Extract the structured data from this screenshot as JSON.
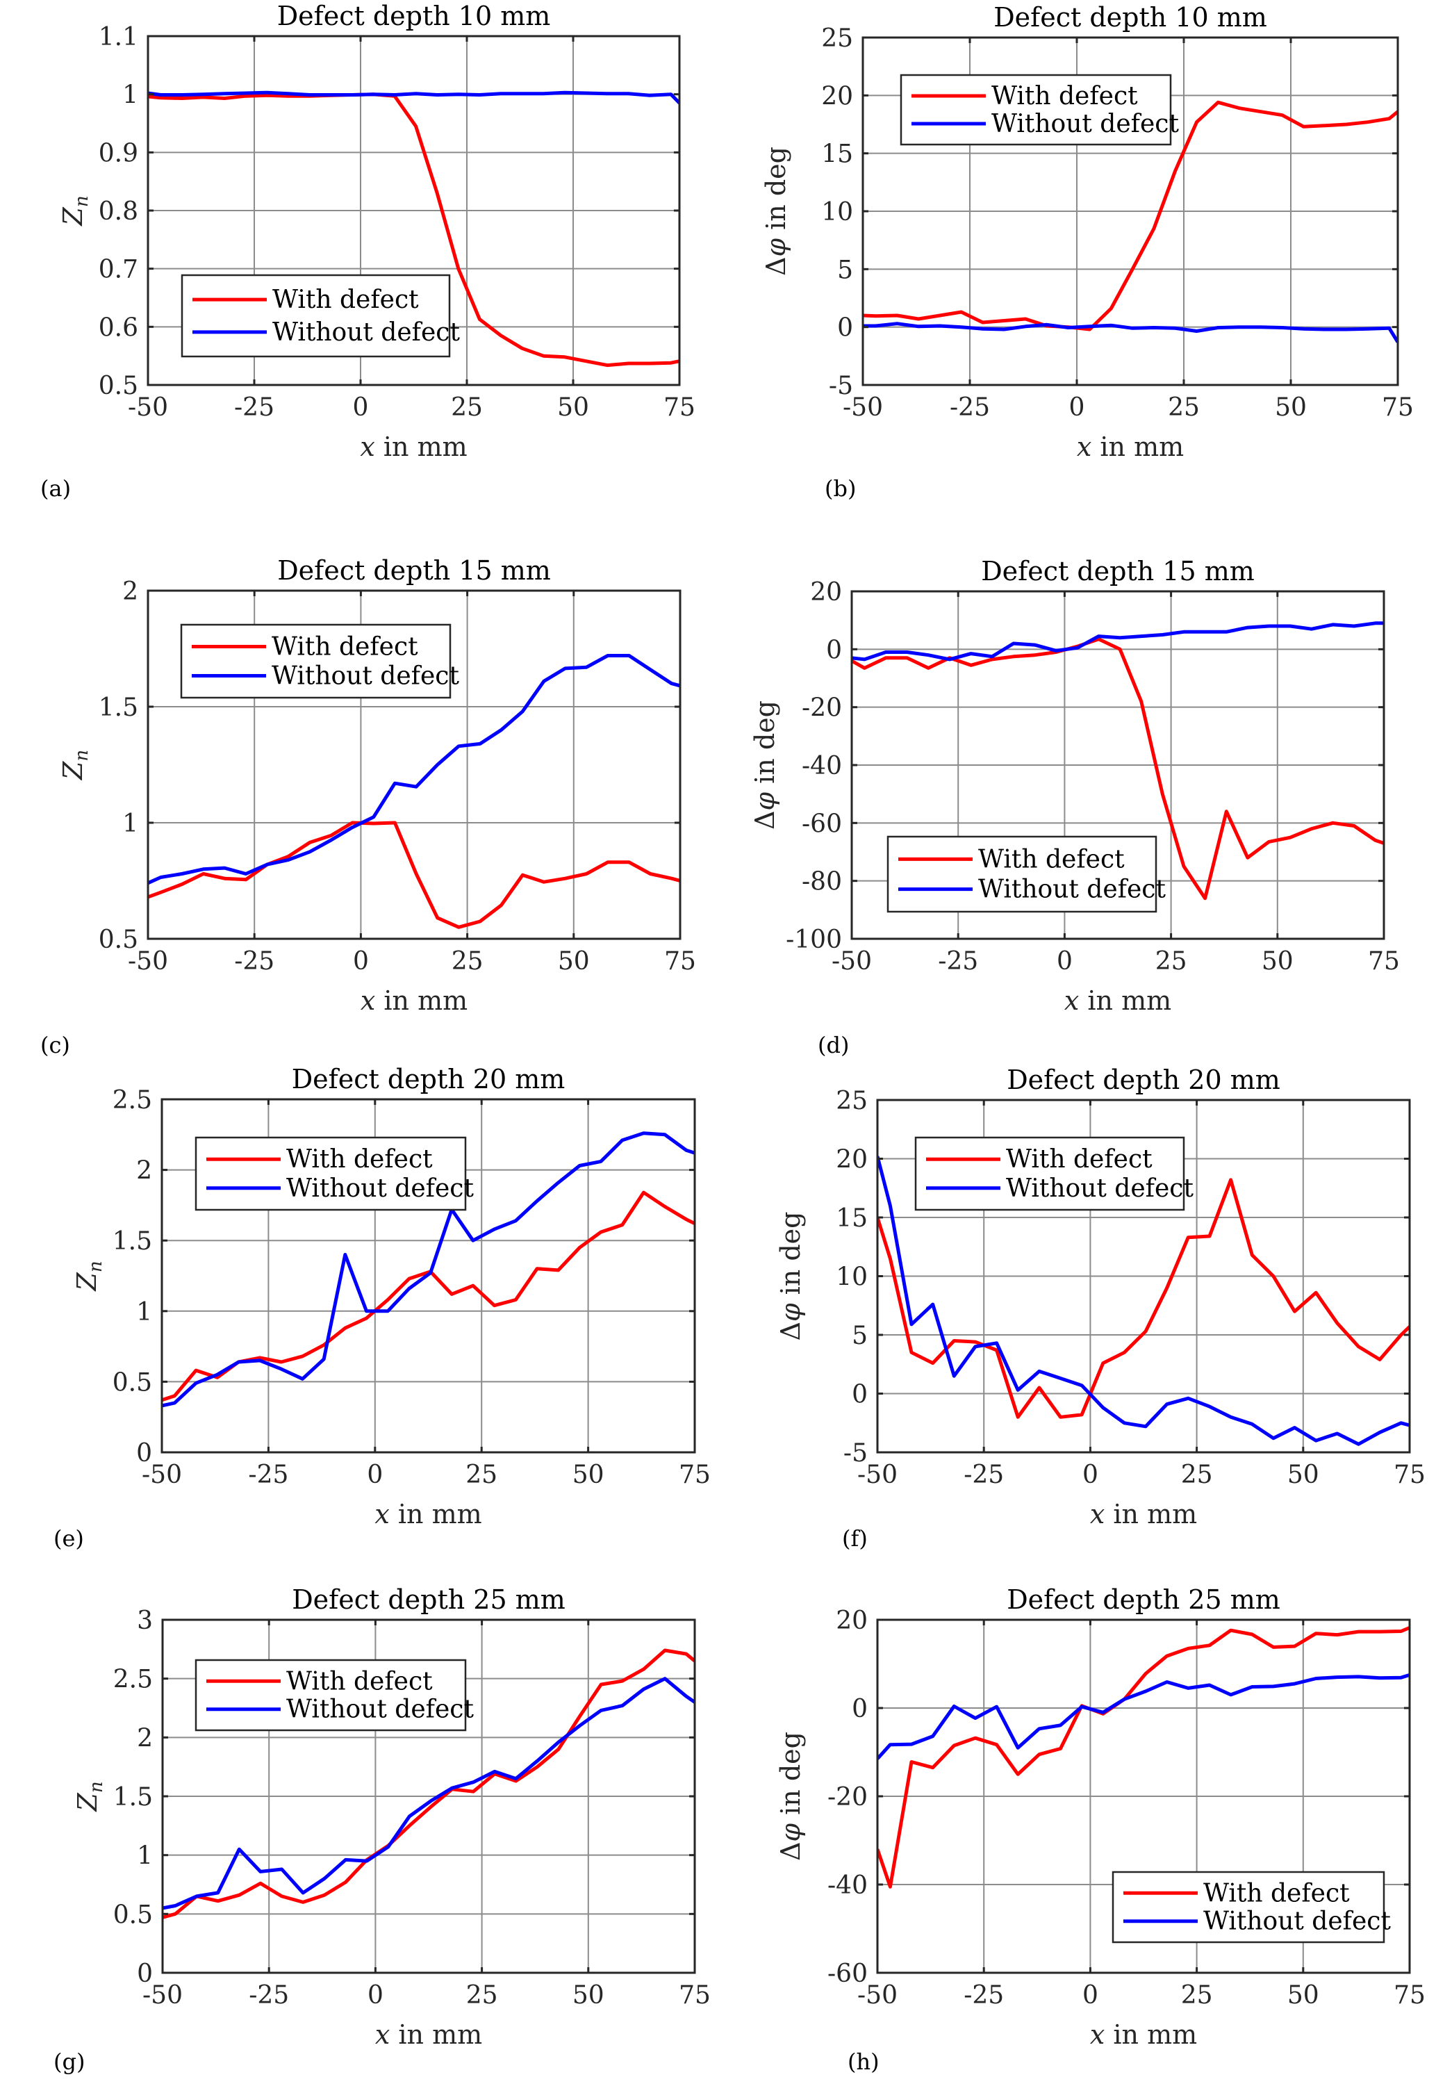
{
  "figure": {
    "colors": {
      "with_defect": "#ff0000",
      "without_defect": "#0000ff"
    },
    "legend_labels": [
      "With defect",
      "Without defect"
    ]
  },
  "chart_data": [
    {
      "panel": "(a)",
      "type": "line",
      "title": "Defect depth 10 mm",
      "xlabel": "x in mm",
      "ylabel": "Z_n",
      "xlim": [
        -50,
        75
      ],
      "ylim": [
        0.5,
        1.1
      ],
      "xticks": [
        -50,
        -25,
        0,
        25,
        50,
        75
      ],
      "yticks": [
        0.5,
        0.6,
        0.7,
        0.8,
        0.9,
        1,
        1.1
      ],
      "ytick_labels": [
        "0.5",
        "0.6",
        "0.7",
        "0.8",
        "0.9",
        "1",
        "1.1"
      ],
      "grid": true,
      "legend_position": "lower-left",
      "x": [
        -50,
        -47,
        -42,
        -37,
        -32,
        -27,
        -22,
        -17,
        -12,
        -7,
        -2,
        3,
        8,
        13,
        18,
        23,
        28,
        33,
        38,
        43,
        48,
        53,
        58,
        63,
        68,
        73,
        75
      ],
      "series": [
        {
          "name": "With defect",
          "values": [
            0.996,
            0.994,
            0.993,
            0.995,
            0.993,
            0.997,
            0.998,
            0.997,
            0.997,
            0.998,
            0.999,
            1.0,
            0.997,
            0.945,
            0.83,
            0.7,
            0.613,
            0.585,
            0.563,
            0.55,
            0.548,
            0.541,
            0.534,
            0.537,
            0.537,
            0.538,
            0.541
          ]
        },
        {
          "name": "Without defect",
          "values": [
            1.002,
            0.999,
            0.999,
            1.0,
            1.001,
            1.002,
            1.003,
            1.001,
            0.999,
            0.999,
            0.999,
            1.0,
            0.999,
            1.001,
            0.999,
            1.0,
            0.999,
            1.001,
            1.001,
            1.001,
            1.003,
            1.002,
            1.001,
            1.001,
            0.998,
            1.0,
            0.985
          ]
        }
      ]
    },
    {
      "panel": "(b)",
      "type": "line",
      "title": "Defect depth 10 mm",
      "xlabel": "x in mm",
      "ylabel": "Δφ in deg",
      "xlim": [
        -50,
        75
      ],
      "ylim": [
        -5,
        25
      ],
      "xticks": [
        -50,
        -25,
        0,
        25,
        50,
        75
      ],
      "yticks": [
        -5,
        0,
        5,
        10,
        15,
        20,
        25
      ],
      "ytick_labels": [
        "-5",
        "0",
        "5",
        "10",
        "15",
        "20",
        "25"
      ],
      "grid": true,
      "legend_position": "upper-left",
      "x": [
        -50,
        -47,
        -42,
        -37,
        -32,
        -27,
        -22,
        -17,
        -12,
        -7,
        -2,
        3,
        8,
        13,
        18,
        23,
        28,
        33,
        38,
        43,
        48,
        53,
        58,
        63,
        68,
        73,
        75
      ],
      "series": [
        {
          "name": "With defect",
          "values": [
            1.0,
            0.95,
            1.0,
            0.7,
            1.0,
            1.3,
            0.4,
            0.55,
            0.7,
            0.1,
            0.0,
            -0.2,
            1.6,
            5.0,
            8.5,
            13.5,
            17.7,
            19.4,
            18.9,
            18.6,
            18.3,
            17.3,
            17.4,
            17.5,
            17.7,
            18.0,
            18.6
          ]
        },
        {
          "name": "Without defect",
          "values": [
            0.1,
            0.1,
            0.3,
            0.05,
            0.1,
            0.0,
            -0.15,
            -0.2,
            0.05,
            0.2,
            -0.05,
            0.05,
            0.15,
            -0.1,
            -0.05,
            -0.1,
            -0.35,
            -0.05,
            0.0,
            0.0,
            -0.05,
            -0.15,
            -0.2,
            -0.2,
            -0.15,
            -0.1,
            -1.3
          ]
        }
      ]
    },
    {
      "panel": "(c)",
      "type": "line",
      "title": "Defect depth 15 mm",
      "xlabel": "x in mm",
      "ylabel": "Z_n",
      "xlim": [
        -50,
        75
      ],
      "ylim": [
        0.5,
        2
      ],
      "xticks": [
        -50,
        -25,
        0,
        25,
        50,
        75
      ],
      "yticks": [
        0.5,
        1,
        1.5,
        2
      ],
      "ytick_labels": [
        "0.5",
        "1",
        "1.5",
        "2"
      ],
      "grid": true,
      "legend_position": "upper-left",
      "x": [
        -50,
        -47,
        -42,
        -37,
        -32,
        -27,
        -22,
        -17,
        -12,
        -7,
        -2,
        3,
        8,
        13,
        18,
        23,
        28,
        33,
        38,
        43,
        48,
        53,
        58,
        63,
        68,
        73,
        75
      ],
      "series": [
        {
          "name": "With defect",
          "values": [
            0.68,
            0.7,
            0.735,
            0.78,
            0.76,
            0.755,
            0.82,
            0.855,
            0.915,
            0.945,
            1.0,
            0.997,
            1.0,
            0.78,
            0.59,
            0.55,
            0.575,
            0.645,
            0.775,
            0.745,
            0.76,
            0.78,
            0.83,
            0.83,
            0.78,
            0.76,
            0.75
          ]
        },
        {
          "name": "Without defect",
          "values": [
            0.74,
            0.765,
            0.78,
            0.8,
            0.805,
            0.78,
            0.82,
            0.84,
            0.875,
            0.925,
            0.98,
            1.025,
            1.17,
            1.155,
            1.25,
            1.33,
            1.34,
            1.4,
            1.48,
            1.61,
            1.665,
            1.67,
            1.72,
            1.72,
            1.66,
            1.6,
            1.59
          ]
        }
      ]
    },
    {
      "panel": "(d)",
      "type": "line",
      "title": "Defect depth 15 mm",
      "xlabel": "x in mm",
      "ylabel": "Δφ in deg",
      "xlim": [
        -50,
        75
      ],
      "ylim": [
        -100,
        20
      ],
      "xticks": [
        -50,
        -25,
        0,
        25,
        50,
        75
      ],
      "yticks": [
        -100,
        -80,
        -60,
        -40,
        -20,
        0,
        20
      ],
      "ytick_labels": [
        "-100",
        "-80",
        "-60",
        "-40",
        "-20",
        "0",
        "20"
      ],
      "grid": true,
      "legend_position": "lower-left",
      "x": [
        -50,
        -47,
        -42,
        -37,
        -32,
        -27,
        -22,
        -17,
        -12,
        -7,
        -2,
        3,
        8,
        13,
        18,
        23,
        28,
        33,
        38,
        43,
        48,
        53,
        58,
        63,
        68,
        73,
        75
      ],
      "series": [
        {
          "name": "With defect",
          "values": [
            -4,
            -6.5,
            -3,
            -3,
            -6.5,
            -3,
            -5.5,
            -3.5,
            -2.5,
            -2,
            -1,
            1,
            3.5,
            0,
            -18,
            -50,
            -75,
            -86,
            -56,
            -72,
            -66.5,
            -65,
            -62,
            -60,
            -61,
            -66,
            -67
          ]
        },
        {
          "name": "Without defect",
          "values": [
            -3,
            -3.5,
            -1,
            -1,
            -2,
            -3.5,
            -1.5,
            -2.5,
            2,
            1.5,
            -0.5,
            0.5,
            4.5,
            4,
            4.5,
            5,
            6,
            6,
            6,
            7.5,
            8,
            8,
            7,
            8.5,
            8,
            9,
            9
          ]
        }
      ]
    },
    {
      "panel": "(e)",
      "type": "line",
      "title": "Defect depth 20 mm",
      "xlabel": "x in mm",
      "ylabel": "Z_n",
      "xlim": [
        -50,
        75
      ],
      "ylim": [
        0,
        2.5
      ],
      "xticks": [
        -50,
        -25,
        0,
        25,
        50,
        75
      ],
      "yticks": [
        0,
        0.5,
        1,
        1.5,
        2,
        2.5
      ],
      "ytick_labels": [
        "0",
        "0.5",
        "1",
        "1.5",
        "2",
        "2.5"
      ],
      "grid": true,
      "legend_position": "upper-left",
      "x": [
        -50,
        -47,
        -42,
        -37,
        -32,
        -27,
        -22,
        -17,
        -12,
        -7,
        -2,
        3,
        8,
        13,
        18,
        23,
        28,
        33,
        38,
        43,
        48,
        53,
        58,
        63,
        68,
        73,
        75
      ],
      "series": [
        {
          "name": "With defect",
          "values": [
            0.37,
            0.4,
            0.58,
            0.53,
            0.64,
            0.67,
            0.64,
            0.68,
            0.76,
            0.88,
            0.95,
            1.08,
            1.23,
            1.28,
            1.12,
            1.18,
            1.04,
            1.08,
            1.3,
            1.29,
            1.45,
            1.56,
            1.61,
            1.84,
            1.74,
            1.65,
            1.62
          ]
        },
        {
          "name": "Without defect",
          "values": [
            0.33,
            0.35,
            0.49,
            0.55,
            0.64,
            0.65,
            0.59,
            0.52,
            0.66,
            1.4,
            1.0,
            1.0,
            1.16,
            1.27,
            1.72,
            1.5,
            1.58,
            1.64,
            1.78,
            1.91,
            2.03,
            2.06,
            2.21,
            2.26,
            2.25,
            2.14,
            2.12
          ]
        }
      ]
    },
    {
      "panel": "(f)",
      "type": "line",
      "title": "Defect depth 20 mm",
      "xlabel": "x in mm",
      "ylabel": "Δφ in deg",
      "xlim": [
        -50,
        75
      ],
      "ylim": [
        -5,
        25
      ],
      "xticks": [
        -50,
        -25,
        0,
        25,
        50,
        75
      ],
      "yticks": [
        -5,
        0,
        5,
        10,
        15,
        20,
        25
      ],
      "ytick_labels": [
        "-5",
        "0",
        "5",
        "10",
        "15",
        "20",
        "25"
      ],
      "grid": true,
      "legend_position": "upper-left",
      "x": [
        -50,
        -47,
        -42,
        -37,
        -32,
        -27,
        -22,
        -17,
        -12,
        -7,
        -2,
        3,
        8,
        13,
        18,
        23,
        28,
        33,
        38,
        43,
        48,
        53,
        58,
        63,
        68,
        73,
        75
      ],
      "series": [
        {
          "name": "With defect",
          "values": [
            15,
            11.5,
            3.5,
            2.6,
            4.5,
            4.4,
            3.7,
            -2,
            0.5,
            -2,
            -1.8,
            2.6,
            3.5,
            5.3,
            9,
            13.3,
            13.4,
            18.2,
            11.8,
            10,
            7,
            8.6,
            6,
            4,
            2.9,
            5,
            5.7
          ]
        },
        {
          "name": "Without defect",
          "values": [
            20.2,
            16,
            5.9,
            7.6,
            1.5,
            4,
            4.3,
            0.3,
            1.9,
            1.3,
            0.7,
            -1.2,
            -2.5,
            -2.8,
            -0.9,
            -0.4,
            -1.1,
            -2,
            -2.6,
            -3.8,
            -2.9,
            -4,
            -3.4,
            -4.3,
            -3.3,
            -2.5,
            -2.7
          ]
        }
      ]
    },
    {
      "panel": "(g)",
      "type": "line",
      "title": "Defect depth 25 mm",
      "xlabel": "x in mm",
      "ylabel": "Z_n",
      "xlim": [
        -50,
        75
      ],
      "ylim": [
        0,
        3
      ],
      "xticks": [
        -50,
        -25,
        0,
        25,
        50,
        75
      ],
      "yticks": [
        0,
        0.5,
        1,
        1.5,
        2,
        2.5,
        3
      ],
      "ytick_labels": [
        "0",
        "0.5",
        "1",
        "1.5",
        "2",
        "2.5",
        "3"
      ],
      "grid": true,
      "legend_position": "upper-left",
      "x": [
        -50,
        -47,
        -42,
        -37,
        -32,
        -27,
        -22,
        -17,
        -12,
        -7,
        -2,
        3,
        8,
        13,
        18,
        23,
        28,
        33,
        38,
        43,
        48,
        53,
        58,
        63,
        68,
        73,
        75
      ],
      "series": [
        {
          "name": "With defect",
          "values": [
            0.47,
            0.5,
            0.65,
            0.61,
            0.66,
            0.76,
            0.65,
            0.6,
            0.66,
            0.77,
            0.96,
            1.08,
            1.25,
            1.41,
            1.56,
            1.54,
            1.69,
            1.63,
            1.75,
            1.9,
            2.18,
            2.45,
            2.48,
            2.58,
            2.74,
            2.71,
            2.65
          ]
        },
        {
          "name": "Without defect",
          "values": [
            0.55,
            0.57,
            0.65,
            0.68,
            1.05,
            0.86,
            0.88,
            0.68,
            0.8,
            0.96,
            0.95,
            1.07,
            1.33,
            1.46,
            1.57,
            1.62,
            1.71,
            1.65,
            1.8,
            1.96,
            2.1,
            2.23,
            2.27,
            2.41,
            2.5,
            2.35,
            2.3
          ]
        }
      ]
    },
    {
      "panel": "(h)",
      "type": "line",
      "title": "Defect depth 25 mm",
      "xlabel": "x in mm",
      "ylabel": "Δφ in deg",
      "xlim": [
        -50,
        75
      ],
      "ylim": [
        -60,
        20
      ],
      "xticks": [
        -50,
        -25,
        0,
        25,
        50,
        75
      ],
      "yticks": [
        -60,
        -40,
        -20,
        0,
        20
      ],
      "ytick_labels": [
        "-60",
        "-40",
        "-20",
        "0",
        "20"
      ],
      "grid": true,
      "legend_position": "lower-right",
      "x": [
        -50,
        -47,
        -42,
        -37,
        -32,
        -27,
        -22,
        -17,
        -12,
        -7,
        -2,
        3,
        8,
        13,
        18,
        23,
        28,
        33,
        38,
        43,
        48,
        53,
        58,
        63,
        68,
        73,
        75
      ],
      "series": [
        {
          "name": "With defect",
          "values": [
            -32,
            -40.5,
            -12.2,
            -13.5,
            -8.5,
            -6.8,
            -8.3,
            -15,
            -10.5,
            -9.2,
            0.5,
            -1.3,
            2,
            7.8,
            11.8,
            13.5,
            14.2,
            17.6,
            16.7,
            13.8,
            14,
            16.9,
            16.6,
            17.3,
            17.3,
            17.4,
            18.2
          ]
        },
        {
          "name": "Without defect",
          "values": [
            -11.5,
            -8.3,
            -8.2,
            -6.4,
            0.4,
            -2.3,
            0.3,
            -9,
            -4.7,
            -3.9,
            0.3,
            -1,
            2,
            3.8,
            5.9,
            4.5,
            5.2,
            3,
            4.8,
            4.9,
            5.5,
            6.7,
            7,
            7.1,
            6.8,
            6.9,
            7.5
          ]
        }
      ]
    }
  ]
}
